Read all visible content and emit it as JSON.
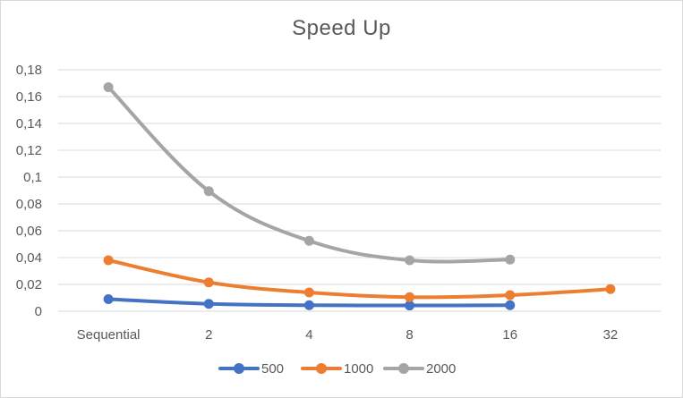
{
  "chart_data": {
    "type": "line",
    "title": "Speed Up",
    "xlabel": "",
    "ylabel": "",
    "categories": [
      "Sequential",
      "2",
      "4",
      "8",
      "16",
      "32"
    ],
    "ylim": [
      0,
      0.18
    ],
    "yticks": [
      "0",
      "0,02",
      "0,04",
      "0,06",
      "0,08",
      "0,1",
      "0,12",
      "0,14",
      "0,16",
      "0,18"
    ],
    "grid": true,
    "legend_position": "bottom",
    "series": [
      {
        "name": "500",
        "color": "#4472c4",
        "values": [
          0.009,
          0.0055,
          0.0045,
          0.0043,
          0.0045,
          null
        ]
      },
      {
        "name": "1000",
        "color": "#ed7d31",
        "values": [
          0.038,
          0.0215,
          0.014,
          0.0105,
          0.012,
          0.0165
        ]
      },
      {
        "name": "2000",
        "color": "#a5a5a5",
        "values": [
          0.167,
          0.0895,
          0.0525,
          0.038,
          0.0385,
          null
        ]
      }
    ]
  }
}
